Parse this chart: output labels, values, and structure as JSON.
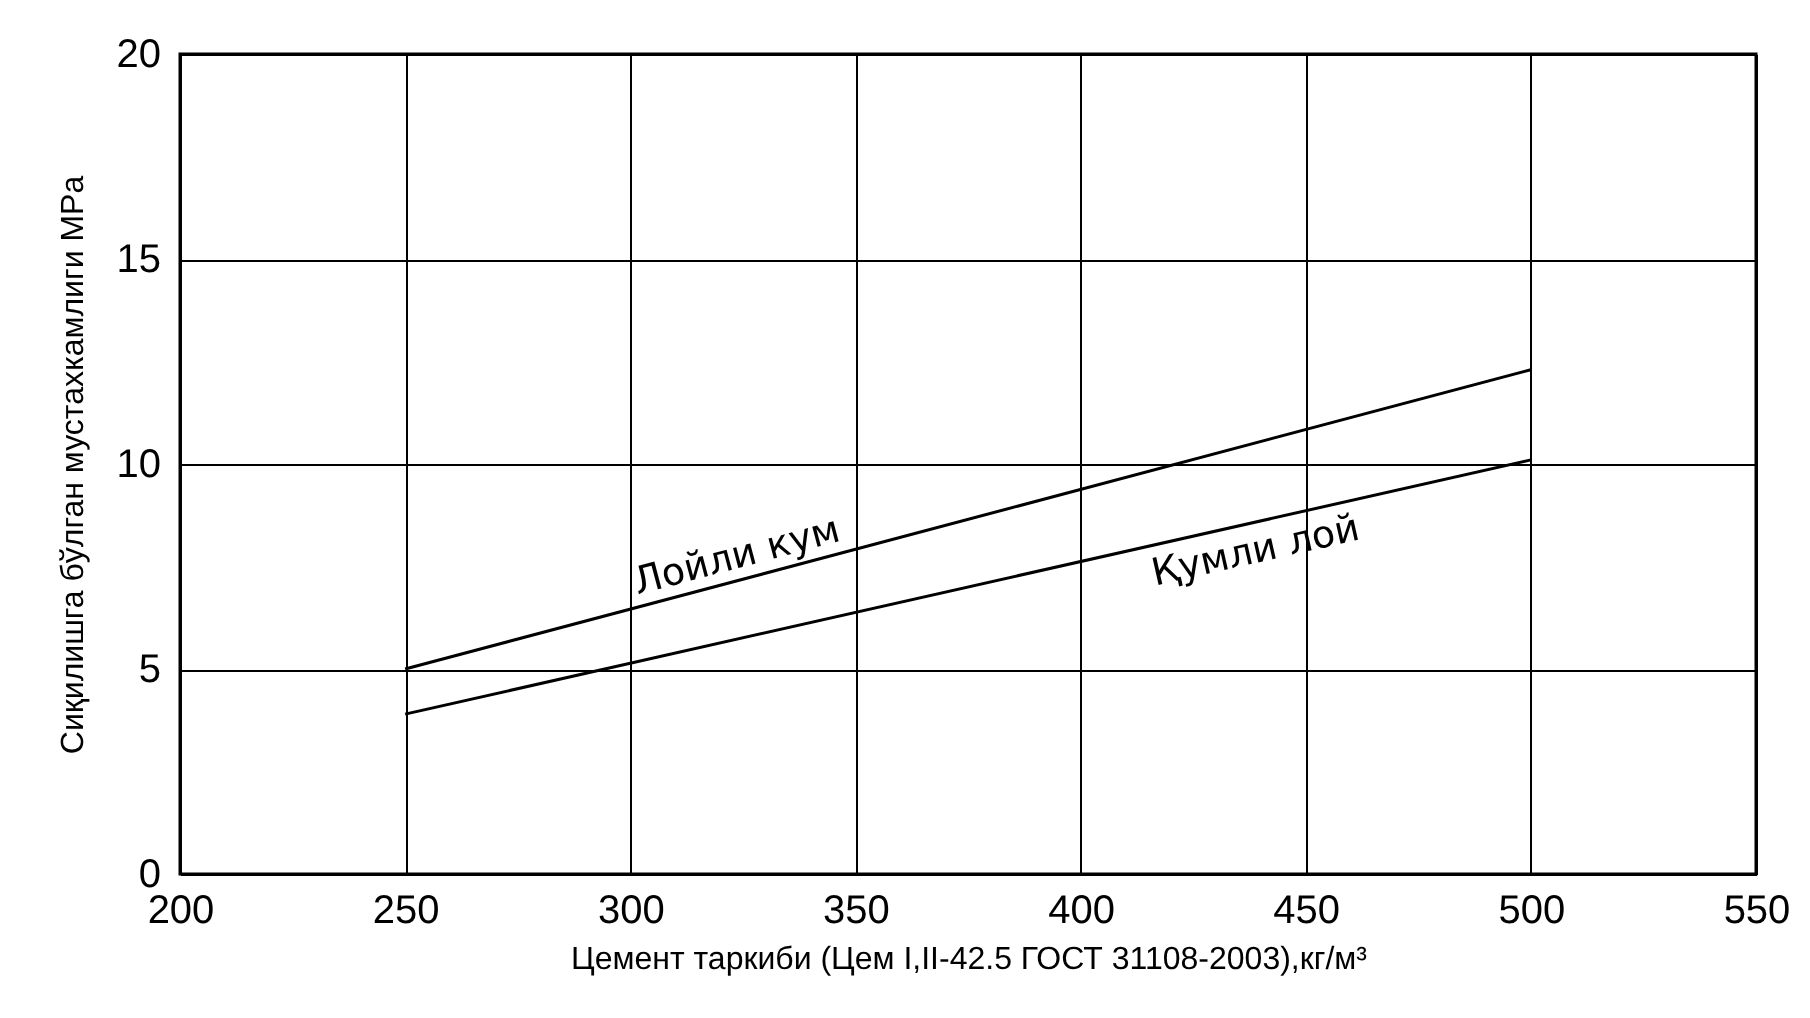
{
  "chart_data": {
    "type": "line",
    "xlabel": "Цемент таркиби (Цем I,II-42.5 ГОСТ 31108-2003),кг/м³",
    "ylabel": "Сиқилишга бўлган мустахкамлиги MPa",
    "x": [
      250,
      500
    ],
    "xlim": [
      200,
      550
    ],
    "xticks": [
      200,
      250,
      300,
      350,
      400,
      450,
      500,
      550
    ],
    "ylim": [
      0,
      20
    ],
    "yticks": [
      0,
      5,
      10,
      15,
      20
    ],
    "grid": true,
    "legend": false,
    "series": [
      {
        "name": "Лойли кум",
        "color": "#000000",
        "values": [
          5.0,
          12.3
        ]
      },
      {
        "name": "Қумли лой",
        "color": "#000000",
        "values": [
          3.9,
          10.1
        ]
      }
    ]
  }
}
